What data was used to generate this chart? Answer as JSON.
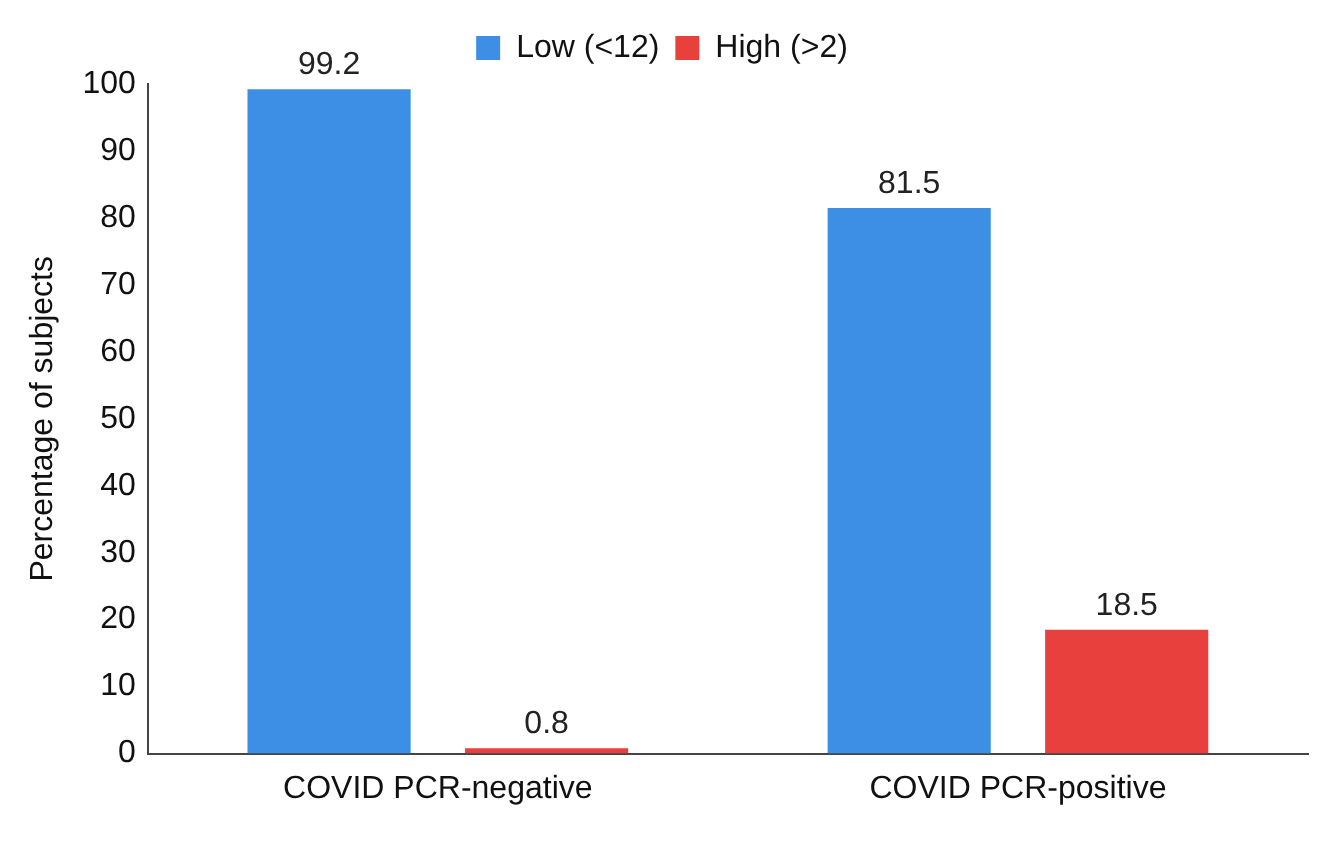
{
  "chart_data": {
    "type": "bar",
    "ylabel": "Percentage of subjects",
    "categories": [
      "COVID PCR-negative",
      "COVID PCR-positive"
    ],
    "series": [
      {
        "name": "Low (<12)",
        "color": "#3d8fe6",
        "values": [
          99.2,
          81.5
        ]
      },
      {
        "name": "High (>2)",
        "color": "#e8403c",
        "values": [
          0.8,
          18.5
        ]
      }
    ],
    "ylim": [
      0,
      100
    ],
    "yticks": [
      0,
      10,
      20,
      30,
      40,
      50,
      60,
      70,
      80,
      90,
      100
    ],
    "grid": false,
    "legend": "top",
    "data_labels": true
  }
}
